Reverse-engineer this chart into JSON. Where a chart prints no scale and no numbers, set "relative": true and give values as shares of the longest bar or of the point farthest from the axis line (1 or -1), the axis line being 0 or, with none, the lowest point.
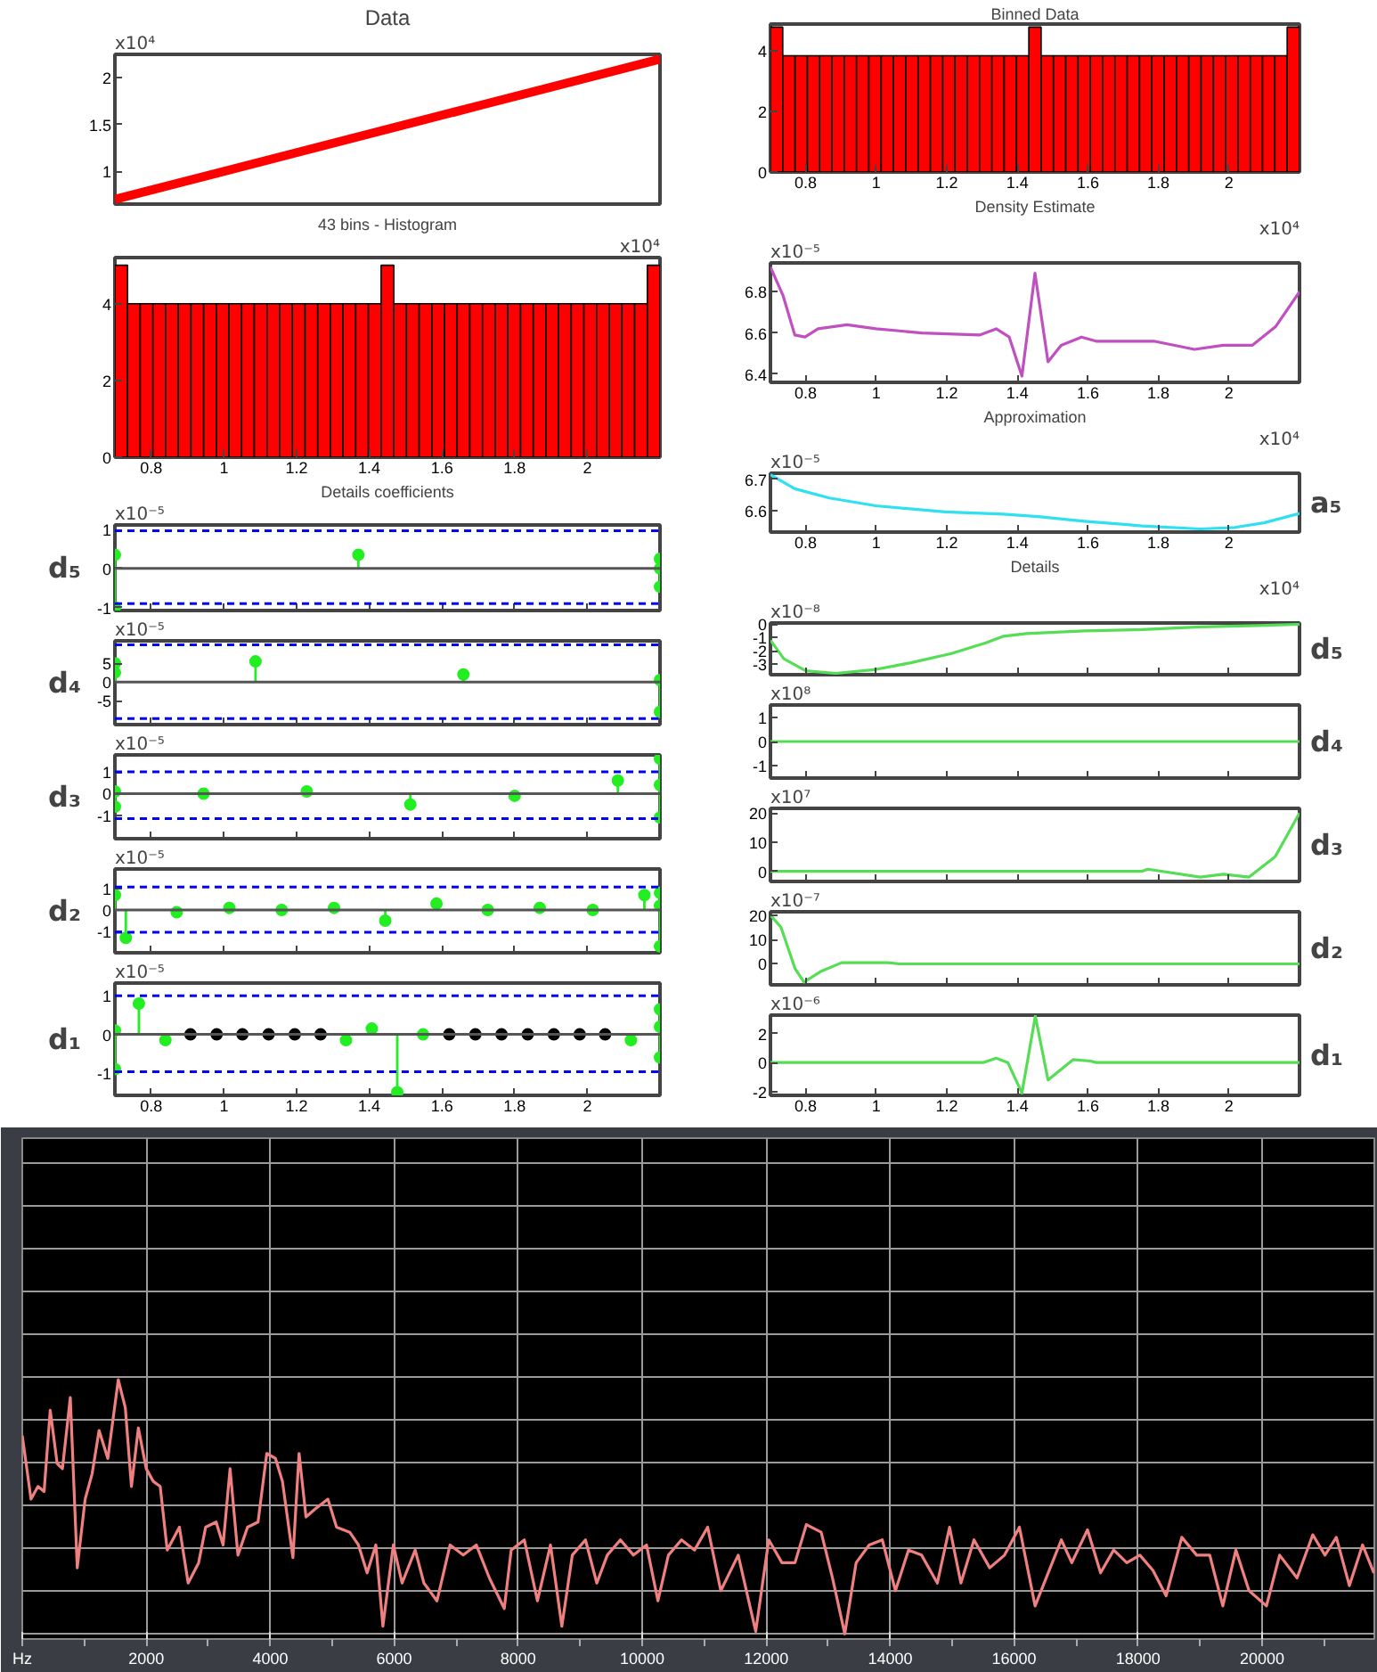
{
  "chart_data": [
    {
      "type": "line",
      "title": "Data",
      "annotations": [
        "x10⁴"
      ],
      "categories": [
        null,
        null,
        null,
        null
      ],
      "values": [
        0.7,
        1.2,
        1.7,
        2.2
      ],
      "color": "#ff0000",
      "ylim": [
        0.65,
        2.25
      ],
      "yticks": [
        1,
        1.5,
        2
      ],
      "tick_labels": "y"
    },
    {
      "type": "histogram",
      "title": "Binned Data",
      "bins": [
        0.7,
        0.7349,
        0.7698,
        0.8047,
        0.8395,
        0.8744,
        0.9093,
        0.9442,
        0.9791,
        1.014,
        1.0488,
        1.0837,
        1.1186,
        1.1535,
        1.1884,
        1.2233,
        1.2581,
        1.293,
        1.3279,
        1.3628,
        1.3977,
        1.4326,
        1.4674,
        1.5023,
        1.5372,
        1.5721,
        1.607,
        1.6419,
        1.6767,
        1.7116,
        1.7465,
        1.7814,
        1.8163,
        1.8512,
        1.886,
        1.9209,
        1.9558,
        1.9907,
        2.0256,
        2.0605,
        2.0953,
        2.1302,
        2.1651,
        2.2
      ],
      "values": [
        4.8,
        3.85,
        3.85,
        3.85,
        3.85,
        3.85,
        3.85,
        3.85,
        3.85,
        3.85,
        3.85,
        3.85,
        3.85,
        3.85,
        3.85,
        3.85,
        3.85,
        3.85,
        3.85,
        3.85,
        3.85,
        4.8,
        3.85,
        3.85,
        3.85,
        3.85,
        3.85,
        3.85,
        3.85,
        3.85,
        3.85,
        3.85,
        3.85,
        3.85,
        3.85,
        3.85,
        3.85,
        3.85,
        3.85,
        3.85,
        3.85,
        3.85,
        4.8
      ],
      "color": "#ff0000",
      "xlim": [
        0.7,
        2.2
      ],
      "xticks": [
        0.8,
        1,
        1.2,
        1.4,
        1.6,
        1.8,
        2
      ],
      "ylim": [
        0,
        4.9
      ],
      "yticks": [
        0,
        2,
        4
      ]
    },
    {
      "type": "histogram",
      "title": "43 bins - Histogram",
      "xlabel": "x10⁴",
      "bins": [
        0.7,
        0.7349,
        0.7698,
        0.8047,
        0.8395,
        0.8744,
        0.9093,
        0.9442,
        0.9791,
        1.014,
        1.0488,
        1.0837,
        1.1186,
        1.1535,
        1.1884,
        1.2233,
        1.2581,
        1.293,
        1.3279,
        1.3628,
        1.3977,
        1.4326,
        1.4674,
        1.5023,
        1.5372,
        1.5721,
        1.607,
        1.6419,
        1.6767,
        1.7116,
        1.7465,
        1.7814,
        1.8163,
        1.8512,
        1.886,
        1.9209,
        1.9558,
        1.9907,
        2.0256,
        2.0605,
        2.0953,
        2.1302,
        2.1651,
        2.2
      ],
      "values": [
        5,
        4,
        4,
        4,
        4,
        4,
        4,
        4,
        4,
        4,
        4,
        4,
        4,
        4,
        4,
        4,
        4,
        4,
        4,
        4,
        4,
        5,
        4,
        4,
        4,
        4,
        4,
        4,
        4,
        4,
        4,
        4,
        4,
        4,
        4,
        4,
        4,
        4,
        4,
        4,
        4,
        4,
        5
      ],
      "color": "#ff0000",
      "xlim": [
        0.7,
        2.2
      ],
      "xticks": [
        0.8,
        1,
        1.2,
        1.4,
        1.6,
        1.8,
        2
      ],
      "ylim": [
        0,
        5.2
      ],
      "yticks": [
        0,
        2,
        4
      ]
    },
    {
      "type": "line",
      "title": "Density Estimate",
      "annotations": [
        "x10⁻⁵"
      ],
      "xlabel": "x10⁴",
      "x": [
        0.7,
        0.736,
        0.769,
        0.798,
        0.835,
        0.917,
        0.999,
        1.13,
        1.294,
        1.34,
        1.377,
        1.413,
        1.45,
        1.487,
        1.524,
        1.582,
        1.623,
        1.787,
        1.902,
        1.984,
        2.066,
        2.132,
        2.2
      ],
      "values": [
        6.92,
        6.78,
        6.59,
        6.58,
        6.62,
        6.64,
        6.62,
        6.6,
        6.59,
        6.62,
        6.58,
        6.39,
        6.89,
        6.46,
        6.54,
        6.58,
        6.56,
        6.56,
        6.52,
        6.54,
        6.54,
        6.63,
        6.8
      ],
      "color": "#c050c0",
      "xlim": [
        0.7,
        2.2
      ],
      "xticks": [
        0.8,
        1,
        1.2,
        1.4,
        1.6,
        1.8,
        2
      ],
      "ylim": [
        6.36,
        6.94
      ],
      "yticks": [
        6.4,
        6.6,
        6.8
      ]
    },
    {
      "type": "line",
      "title": "Approximation",
      "annotations": [
        "x10⁻⁵"
      ],
      "xlabel": "x10⁴",
      "y2label": "a₅",
      "x": [
        0.7,
        0.769,
        0.867,
        0.999,
        1.196,
        1.36,
        1.459,
        1.59,
        1.754,
        1.918,
        2.017,
        2.099,
        2.2
      ],
      "values": [
        6.715,
        6.67,
        6.64,
        6.615,
        6.595,
        6.588,
        6.58,
        6.565,
        6.55,
        6.54,
        6.545,
        6.56,
        6.59
      ],
      "color": "#30e0f0",
      "xlim": [
        0.7,
        2.2
      ],
      "xticks": [
        0.8,
        1,
        1.2,
        1.4,
        1.6,
        1.8,
        2
      ],
      "ylim": [
        6.53,
        6.72
      ],
      "yticks": [
        6.6,
        6.7
      ]
    },
    {
      "type": "lollipop",
      "title": "Details coefficients",
      "annotations": [
        "x10⁻⁵"
      ],
      "ylabel": "d₅",
      "marker": "circle",
      "series": [
        {
          "color": "#22ee22",
          "x": [
            0.7,
            0.7,
            1.37,
            2.2,
            2.2,
            2.2
          ],
          "values": [
            0.35,
            -1.0,
            0.35,
            0.25,
            0,
            -0.47
          ]
        }
      ],
      "ref_lines": [
        {
          "axis": "y",
          "value": 0,
          "color": "#555555",
          "line_style": "solid"
        },
        {
          "axis": "y",
          "value": 0.97,
          "color": "#0000ff",
          "line_style": "dashed"
        },
        {
          "axis": "y",
          "value": -0.9,
          "color": "#0000ff",
          "line_style": "dashed"
        }
      ],
      "xlim": [
        0.7,
        2.2
      ],
      "xticks": [
        0.8,
        1,
        1.2,
        1.4,
        1.6,
        1.8,
        2
      ],
      "ylim": [
        -1.08,
        1.12
      ],
      "yticks": [
        -1,
        0,
        1
      ],
      "tick_labels": "y"
    },
    {
      "type": "line",
      "title": "Details",
      "annotations": [
        "x10⁻⁸"
      ],
      "xlabel": "x10⁴",
      "y2label": "d₅",
      "x": [
        0.7,
        0.738,
        0.8,
        0.885,
        1.0,
        1.098,
        1.213,
        1.311,
        1.361,
        1.426,
        1.59,
        1.754,
        1.918,
        2.082,
        2.2
      ],
      "values": [
        -1.2,
        -2.6,
        -3.5,
        -3.7,
        -3.4,
        -2.9,
        -2.2,
        -1.4,
        -0.9,
        -0.7,
        -0.5,
        -0.4,
        -0.2,
        -0.1,
        0
      ],
      "color": "#55dd55",
      "xlim": [
        0.7,
        2.2
      ],
      "xticks": [
        0.8,
        1,
        1.2,
        1.4,
        1.6,
        1.8,
        2
      ],
      "ylim": [
        -3.8,
        0.1
      ],
      "yticks": [
        -3,
        -2,
        -1,
        0
      ],
      "tick_labels": "y"
    },
    {
      "type": "lollipop",
      "annotations": [
        "x10⁻⁵"
      ],
      "ylabel": "d₄",
      "marker": "circle",
      "series": [
        {
          "color": "#22ee22",
          "x": [
            0.7,
            0.7,
            1.087,
            1.659,
            2.2,
            2.2
          ],
          "values": [
            5,
            2.5,
            5.5,
            2,
            0.5,
            -8
          ]
        }
      ],
      "ref_lines": [
        {
          "axis": "y",
          "value": 0,
          "color": "#555555",
          "line_style": "solid"
        },
        {
          "axis": "y",
          "value": 9.9,
          "color": "#0000ff",
          "line_style": "dashed"
        },
        {
          "axis": "y",
          "value": -9.8,
          "color": "#0000ff",
          "line_style": "dashed"
        }
      ],
      "xlim": [
        0.7,
        2.2
      ],
      "xticks": [
        0.8,
        1,
        1.2,
        1.4,
        1.6,
        1.8,
        2
      ],
      "ylim": [
        -11.4,
        11
      ],
      "yticks": [
        -5,
        0,
        5
      ],
      "tick_labels": "y"
    },
    {
      "type": "line",
      "annotations": [
        "x10⁸"
      ],
      "y2label": "d₄",
      "x": [
        0.7,
        2.2
      ],
      "values": [
        0,
        0
      ],
      "color": "#55dd55",
      "xlim": [
        0.7,
        2.2
      ],
      "xticks": [
        0.8,
        1,
        1.2,
        1.4,
        1.6,
        1.8,
        2
      ],
      "ylim": [
        -1.5,
        1.5
      ],
      "yticks": [
        -1,
        0,
        1
      ],
      "tick_labels": "y"
    },
    {
      "type": "lollipop",
      "annotations": [
        "x10⁻⁵"
      ],
      "ylabel": "d₃",
      "marker": "circle",
      "series": [
        {
          "color": "#22ee22",
          "x": [
            0.7,
            0.7,
            0.944,
            1.228,
            1.513,
            1.8,
            2.084,
            2.2,
            2.2,
            2.2
          ],
          "values": [
            0.1,
            -0.6,
            0,
            0.1,
            -0.5,
            -0.1,
            0.6,
            1.6,
            0.4,
            -1.1
          ]
        }
      ],
      "ref_lines": [
        {
          "axis": "y",
          "value": 0,
          "color": "#555555",
          "line_style": "solid"
        },
        {
          "axis": "y",
          "value": 1.0,
          "color": "#0000ff",
          "line_style": "dashed"
        },
        {
          "axis": "y",
          "value": -1.15,
          "color": "#0000ff",
          "line_style": "dashed"
        }
      ],
      "xlim": [
        0.7,
        2.2
      ],
      "xticks": [
        0.8,
        1,
        1.2,
        1.4,
        1.6,
        1.8,
        2
      ],
      "ylim": [
        -2.07,
        1.78
      ],
      "yticks": [
        -1,
        0,
        1
      ],
      "tick_labels": "y"
    },
    {
      "type": "line",
      "annotations": [
        "x10⁷"
      ],
      "y2label": "d₃",
      "x": [
        0.7,
        1.754,
        1.77,
        1.918,
        1.984,
        2.057,
        2.131,
        2.2
      ],
      "values": [
        0,
        0,
        0.7,
        -2,
        -1,
        -2,
        5,
        20
      ],
      "color": "#55dd55",
      "xlim": [
        0.7,
        2.2
      ],
      "xticks": [
        0.8,
        1,
        1.2,
        1.4,
        1.6,
        1.8,
        2
      ],
      "ylim": [
        -3.5,
        21.6
      ],
      "yticks": [
        0,
        10,
        20
      ],
      "tick_labels": "y"
    },
    {
      "type": "lollipop",
      "annotations": [
        "x10⁻⁵"
      ],
      "ylabel": "d₂",
      "marker": "circle",
      "series": [
        {
          "color": "#22ee22",
          "x": [
            0.7,
            0.73,
            0.87,
            1.015,
            1.159,
            1.303,
            1.444,
            1.585,
            1.726,
            1.869,
            2.015,
            2.157,
            2.2,
            2.2,
            2.2
          ],
          "values": [
            0.7,
            -1.3,
            -0.1,
            0.1,
            0,
            0.1,
            -0.5,
            0.3,
            0,
            0.1,
            0,
            0.7,
            0.8,
            0.2,
            -1.7
          ]
        }
      ],
      "ref_lines": [
        {
          "axis": "y",
          "value": 0,
          "color": "#555555",
          "line_style": "solid"
        },
        {
          "axis": "y",
          "value": 1.08,
          "color": "#0000ff",
          "line_style": "dashed"
        },
        {
          "axis": "y",
          "value": -1.04,
          "color": "#0000ff",
          "line_style": "dashed"
        }
      ],
      "xlim": [
        0.7,
        2.2
      ],
      "xticks": [
        0.8,
        1,
        1.2,
        1.4,
        1.6,
        1.8,
        2
      ],
      "ylim": [
        -2.0,
        1.92
      ],
      "yticks": [
        -1,
        0,
        1
      ],
      "tick_labels": "y"
    },
    {
      "type": "line",
      "annotations": [
        "x10⁻⁷"
      ],
      "y2label": "d₂",
      "x": [
        0.7,
        0.73,
        0.77,
        0.795,
        0.844,
        0.902,
        1.033,
        1.066,
        2.2
      ],
      "values": [
        20,
        15,
        -2,
        -7.5,
        -3,
        0.5,
        0.5,
        0,
        0
      ],
      "color": "#55dd55",
      "xlim": [
        0.7,
        2.2
      ],
      "xticks": [
        0.8,
        1,
        1.2,
        1.4,
        1.6,
        1.8,
        2
      ],
      "ylim": [
        -8.6,
        21.4
      ],
      "yticks": [
        0,
        10,
        20
      ],
      "tick_labels": "y"
    },
    {
      "type": "lollipop",
      "annotations": [
        "x10⁻⁵"
      ],
      "ylabel": "d₁",
      "marker": "circle",
      "series": [
        {
          "color": "#22ee22",
          "x": [
            0.7,
            0.7,
            0.766,
            0.839,
            1.336,
            1.407,
            1.477,
            1.548,
            2.12,
            2.2,
            2.2,
            2.2
          ],
          "values": [
            0.1,
            -0.9,
            0.8,
            -0.15,
            -0.15,
            0.15,
            -1.5,
            0,
            -0.15,
            0.65,
            0.2,
            -0.6
          ]
        },
        {
          "color": "#000000",
          "x": [
            0.908,
            0.98,
            1.051,
            1.123,
            1.195,
            1.266,
            1.62,
            1.692,
            1.764,
            1.836,
            1.908,
            1.979,
            2.049
          ],
          "values": [
            0,
            0,
            0,
            0,
            0,
            0,
            0,
            0,
            0,
            0,
            0,
            0,
            0
          ]
        }
      ],
      "ref_lines": [
        {
          "axis": "y",
          "value": 0,
          "color": "#555555",
          "line_style": "solid"
        },
        {
          "axis": "y",
          "value": 1.0,
          "color": "#0000ff",
          "line_style": "dashed"
        },
        {
          "axis": "y",
          "value": -0.97,
          "color": "#0000ff",
          "line_style": "dashed"
        }
      ],
      "xlim": [
        0.7,
        2.2
      ],
      "xticks": [
        0.8,
        1,
        1.2,
        1.4,
        1.6,
        1.8,
        2
      ],
      "ylim": [
        -1.58,
        1.33
      ],
      "yticks": [
        -1,
        0,
        1
      ]
    },
    {
      "type": "line",
      "annotations": [
        "x10⁻⁶"
      ],
      "y2label": "d₁",
      "x": [
        0.7,
        1.303,
        1.34,
        1.373,
        1.413,
        1.451,
        1.487,
        1.558,
        1.607,
        1.623,
        2.2
      ],
      "values": [
        0,
        0,
        0.3,
        0,
        -2.1,
        3.2,
        -1.2,
        0.2,
        0.1,
        0,
        0
      ],
      "color": "#55dd55",
      "xlim": [
        0.7,
        2.2
      ],
      "xticks": [
        0.8,
        1,
        1.2,
        1.4,
        1.6,
        1.8,
        2
      ],
      "ylim": [
        -2.26,
        3.26
      ],
      "yticks": [
        -2,
        0,
        2
      ]
    },
    {
      "type": "line",
      "relative": true,
      "grid": true,
      "tick_labels": "x",
      "color": "#f08080",
      "xlim": [
        0,
        21810
      ],
      "xticks": [
        {
          "value": 0,
          "label": "Hz"
        },
        2000,
        4000,
        6000,
        8000,
        10000,
        12000,
        14000,
        16000,
        18000,
        20000
      ],
      "x": [
        0,
        141,
        254,
        352,
        451,
        563,
        648,
        775,
        887,
        1014,
        1127,
        1239,
        1380,
        1549,
        1662,
        1761,
        1873,
        2000,
        2113,
        2225,
        2338,
        2535,
        2676,
        2845,
        2958,
        3127,
        3240,
        3352,
        3479,
        3634,
        3803,
        3944,
        4085,
        4197,
        4366,
        4465,
        4577,
        4718,
        4930,
        5070,
        5282,
        5423,
        5563,
        5704,
        5817,
        5986,
        6127,
        6338,
        6479,
        6690,
        6901,
        7113,
        7324,
        7535,
        7775,
        7887,
        8099,
        8310,
        8521,
        8704,
        8873,
        9085,
        9268,
        9437,
        9648,
        9859,
        10070,
        10254,
        10423,
        10634,
        10845,
        11056,
        11268,
        11549,
        11831,
        12042,
        12254,
        12465,
        12648,
        12887,
        13070,
        13268,
        13451,
        13662,
        13873,
        14085,
        14296,
        14507,
        14761,
        14958,
        15141,
        15352,
        15606,
        15845,
        16085,
        16338,
        16549,
        16761,
        16930,
        17183,
        17394,
        17606,
        17817,
        18028,
        18239,
        18451,
        18704,
        18944,
        19155,
        19366,
        19577,
        19789,
        20070,
        20282,
        20563,
        20817,
        21014,
        21197,
        21408,
        21620,
        21803
      ],
      "values": [
        0.78,
        0.53,
        0.58,
        0.56,
        0.88,
        0.67,
        0.65,
        0.93,
        0.26,
        0.53,
        0.63,
        0.8,
        0.69,
        1.0,
        0.89,
        0.58,
        0.81,
        0.65,
        0.6,
        0.58,
        0.33,
        0.42,
        0.2,
        0.28,
        0.42,
        0.44,
        0.35,
        0.65,
        0.31,
        0.42,
        0.44,
        0.71,
        0.69,
        0.6,
        0.3,
        0.71,
        0.46,
        0.49,
        0.53,
        0.42,
        0.4,
        0.35,
        0.24,
        0.35,
        0.03,
        0.35,
        0.2,
        0.33,
        0.2,
        0.13,
        0.35,
        0.31,
        0.35,
        0.22,
        0.1,
        0.33,
        0.37,
        0.13,
        0.35,
        0.03,
        0.31,
        0.37,
        0.2,
        0.31,
        0.37,
        0.31,
        0.35,
        0.13,
        0.31,
        0.37,
        0.33,
        0.42,
        0.17,
        0.31,
        0.01,
        0.37,
        0.28,
        0.28,
        0.43,
        0.4,
        0.22,
        0,
        0.28,
        0.35,
        0.37,
        0.17,
        0.33,
        0.31,
        0.2,
        0.42,
        0.2,
        0.37,
        0.26,
        0.31,
        0.42,
        0.11,
        0.24,
        0.37,
        0.28,
        0.41,
        0.24,
        0.33,
        0.28,
        0.31,
        0.25,
        0.15,
        0.38,
        0.31,
        0.31,
        0.11,
        0.33,
        0.17,
        0.11,
        0.31,
        0.22,
        0.39,
        0.31,
        0.38,
        0.19,
        0.35,
        0.24
      ]
    }
  ]
}
